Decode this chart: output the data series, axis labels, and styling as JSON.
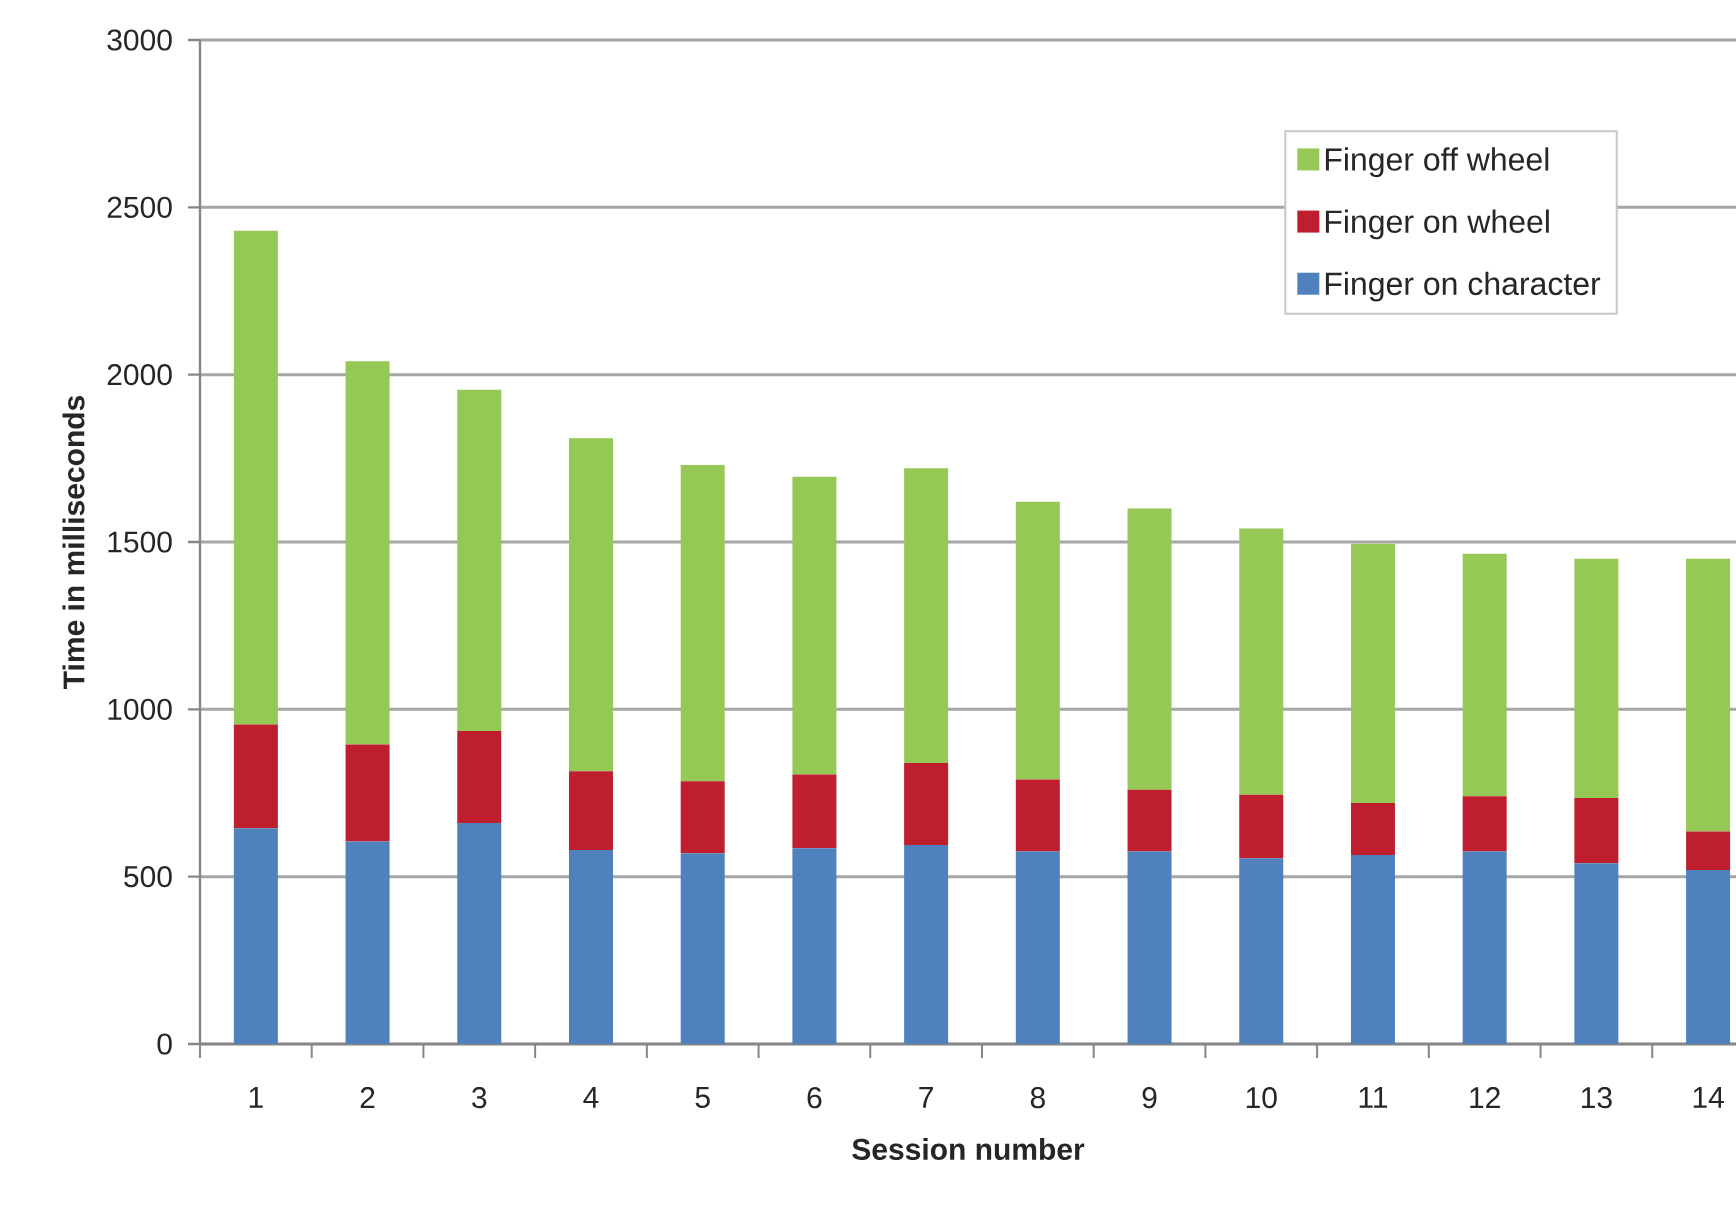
{
  "chart_data": {
    "type": "bar",
    "stacked": true,
    "xlabel": "Session number",
    "ylabel": "Time in milliseconds",
    "categories": [
      "1",
      "2",
      "3",
      "4",
      "5",
      "6",
      "7",
      "8",
      "9",
      "10",
      "11",
      "12",
      "13",
      "14"
    ],
    "series": [
      {
        "name": "Finger on character",
        "color": "#4f81bd",
        "values": [
          645,
          605,
          660,
          580,
          570,
          585,
          595,
          575,
          575,
          555,
          565,
          575,
          540,
          520
        ]
      },
      {
        "name": "Finger on wheel",
        "color": "#be1e2d",
        "values": [
          310,
          290,
          275,
          235,
          215,
          220,
          245,
          215,
          185,
          190,
          155,
          165,
          195,
          115
        ]
      },
      {
        "name": "Finger off wheel",
        "color": "#95c855",
        "values": [
          1475,
          1145,
          1020,
          995,
          945,
          890,
          880,
          830,
          840,
          795,
          775,
          725,
          715,
          815
        ]
      }
    ],
    "ylim": [
      0,
      3000
    ],
    "yticks": [
      0,
      500,
      1000,
      1500,
      2000,
      2500,
      3000
    ],
    "grid": "y",
    "legend": "top right"
  }
}
